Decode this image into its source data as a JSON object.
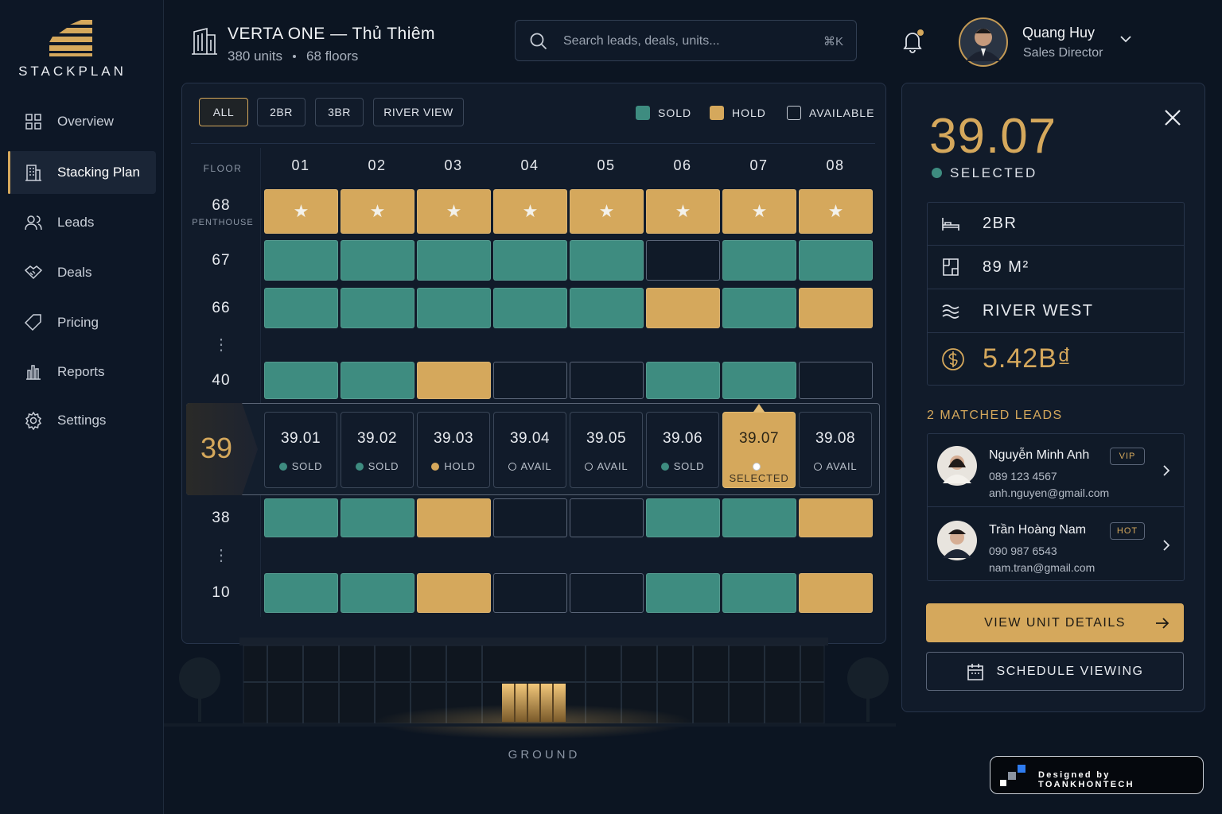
{
  "sidebar": {
    "brand": "STACKPLAN",
    "nav": [
      "Overview",
      "Stacking Plan",
      "Leads",
      "Deals",
      "Pricing",
      "Reports",
      "Settings"
    ],
    "active": 1
  },
  "header": {
    "title": "VERTA ONE — Thủ Thiêm",
    "units": "380 units",
    "floors": "68 floors",
    "search_placeholder": "Search leads, deals, units...",
    "shortcut": "⌘K",
    "user": {
      "name": "Quang Huy",
      "role": "Sales Director"
    }
  },
  "stacking_plan": {
    "filters": [
      "ALL",
      "2BR",
      "3BR",
      "RIVER VIEW"
    ],
    "active_filter": 0,
    "legend": [
      {
        "label": "SOLD",
        "color": "#3e8c80"
      },
      {
        "label": "HOLD",
        "color": "#d5a85c"
      },
      {
        "label": "AVAILABLE",
        "color": "#101a28"
      }
    ],
    "floor_header": "FLOOR",
    "columns": [
      "01",
      "02",
      "03",
      "04",
      "05",
      "06",
      "07",
      "08"
    ],
    "rows": [
      {
        "floor": "68",
        "note": "PENTHOUSE",
        "star": true,
        "cells": [
          "HOLD",
          "HOLD",
          "HOLD",
          "HOLD",
          "HOLD",
          "HOLD",
          "HOLD",
          "HOLD"
        ]
      },
      {
        "floor": "67",
        "cells": [
          "SOLD",
          "SOLD",
          "SOLD",
          "SOLD",
          "SOLD",
          "AVAILABLE",
          "SOLD",
          "SOLD"
        ]
      },
      {
        "floor": "66",
        "cells": [
          "SOLD",
          "SOLD",
          "SOLD",
          "SOLD",
          "SOLD",
          "HOLD",
          "SOLD",
          "HOLD"
        ]
      },
      {
        "floor": "40",
        "cells": [
          "SOLD",
          "SOLD",
          "HOLD",
          "AVAILABLE",
          "AVAILABLE",
          "SOLD",
          "SOLD",
          "AVAILABLE"
        ]
      },
      {
        "floor": "39",
        "selected": 6,
        "cells": [
          "SOLD",
          "SOLD",
          "HOLD",
          "AVAILABLE",
          "AVAILABLE",
          "SOLD",
          "HOLD",
          "AVAILABLE"
        ],
        "units": [
          "39.01",
          "39.02",
          "39.03",
          "39.04",
          "39.05",
          "39.06",
          "39.07",
          "39.08"
        ],
        "unit_labels": [
          "SOLD",
          "SOLD",
          "HOLD",
          "AVAIL",
          "AVAIL",
          "SOLD",
          "SELECTED",
          "AVAIL"
        ]
      },
      {
        "floor": "38",
        "cells": [
          "SOLD",
          "SOLD",
          "HOLD",
          "AVAILABLE",
          "AVAILABLE",
          "SOLD",
          "SOLD",
          "HOLD"
        ]
      },
      {
        "floor": "10",
        "cells": [
          "SOLD",
          "SOLD",
          "HOLD",
          "AVAILABLE",
          "AVAILABLE",
          "SOLD",
          "SOLD",
          "HOLD"
        ]
      }
    ],
    "ground": "GROUND"
  },
  "detail": {
    "unit": "39.07",
    "status": "SELECTED",
    "specs": [
      "2BR",
      "89 M²",
      "RIVER WEST"
    ],
    "price": "5.42B₫",
    "leads_heading": "2 MATCHED LEADS",
    "leads": [
      {
        "name": "Nguyễn Minh Anh",
        "badge": "VIP",
        "phone": "089 123 4567",
        "email": "anh.nguyen@gmail.com"
      },
      {
        "name": "Trần Hoàng Nam",
        "badge": "HOT",
        "phone": "090 987 6543",
        "email": "nam.tran@gmail.com"
      }
    ],
    "primary_button": "VIEW UNIT DETAILS",
    "secondary_button": "SCHEDULE VIEWING"
  },
  "credit": "Designed by TOANKHONTECH"
}
